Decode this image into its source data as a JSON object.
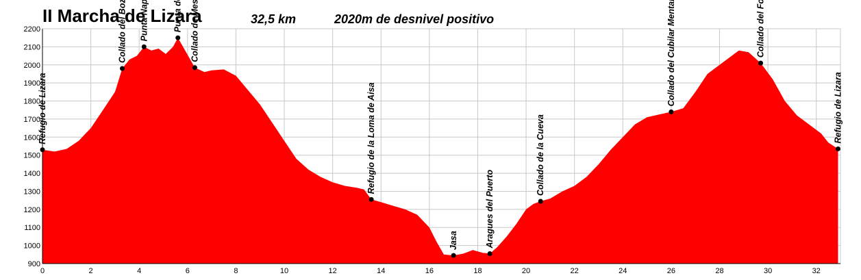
{
  "header": {
    "title": "II Marcha de Lizara",
    "distance": "32,5 km",
    "elevation_gain": "2020m de desnivel positivo"
  },
  "colors": {
    "fill": "#ff0000",
    "grid": "#c8c8c8",
    "axis": "#000000",
    "marker": "#000000"
  },
  "chart_data": {
    "type": "area",
    "title": "II Marcha de Lizara",
    "xlabel": "",
    "ylabel": "",
    "xlim": [
      0,
      33
    ],
    "ylim": [
      900,
      2200
    ],
    "grid": true,
    "x_ticks": [
      0,
      2,
      4,
      6,
      8,
      10,
      12,
      14,
      16,
      18,
      20,
      22,
      24,
      26,
      28,
      30,
      32
    ],
    "y_ticks": [
      900,
      1000,
      1100,
      1200,
      1300,
      1400,
      1500,
      1600,
      1700,
      1800,
      1900,
      2000,
      2100,
      2200
    ],
    "profile": [
      [
        0,
        1530
      ],
      [
        0.5,
        1520
      ],
      [
        1,
        1535
      ],
      [
        1.5,
        1580
      ],
      [
        2,
        1650
      ],
      [
        2.5,
        1750
      ],
      [
        3,
        1850
      ],
      [
        3.3,
        1980
      ],
      [
        3.6,
        2030
      ],
      [
        3.9,
        2050
      ],
      [
        4.2,
        2100
      ],
      [
        4.5,
        2080
      ],
      [
        4.8,
        2090
      ],
      [
        5.1,
        2060
      ],
      [
        5.4,
        2100
      ],
      [
        5.6,
        2150
      ],
      [
        5.9,
        2080
      ],
      [
        6.3,
        1985
      ],
      [
        6.7,
        1960
      ],
      [
        7,
        1970
      ],
      [
        7.5,
        1975
      ],
      [
        8,
        1940
      ],
      [
        8.5,
        1860
      ],
      [
        9,
        1780
      ],
      [
        9.5,
        1680
      ],
      [
        10,
        1580
      ],
      [
        10.5,
        1480
      ],
      [
        11,
        1420
      ],
      [
        11.5,
        1380
      ],
      [
        12,
        1350
      ],
      [
        12.5,
        1330
      ],
      [
        13,
        1320
      ],
      [
        13.3,
        1310
      ],
      [
        13.6,
        1255
      ],
      [
        14,
        1240
      ],
      [
        14.5,
        1220
      ],
      [
        15,
        1200
      ],
      [
        15.5,
        1170
      ],
      [
        16,
        1100
      ],
      [
        16.3,
        1020
      ],
      [
        16.6,
        950
      ],
      [
        17,
        945
      ],
      [
        17.4,
        955
      ],
      [
        17.8,
        975
      ],
      [
        18.2,
        960
      ],
      [
        18.5,
        955
      ],
      [
        18.8,
        990
      ],
      [
        19.2,
        1050
      ],
      [
        19.6,
        1120
      ],
      [
        20,
        1200
      ],
      [
        20.3,
        1230
      ],
      [
        20.6,
        1245
      ],
      [
        21,
        1260
      ],
      [
        21.5,
        1300
      ],
      [
        22,
        1330
      ],
      [
        22.5,
        1380
      ],
      [
        23,
        1450
      ],
      [
        23.5,
        1530
      ],
      [
        24,
        1600
      ],
      [
        24.5,
        1670
      ],
      [
        25,
        1710
      ],
      [
        25.5,
        1725
      ],
      [
        26,
        1740
      ],
      [
        26.5,
        1760
      ],
      [
        27,
        1850
      ],
      [
        27.5,
        1950
      ],
      [
        28,
        2000
      ],
      [
        28.5,
        2050
      ],
      [
        28.8,
        2080
      ],
      [
        29.2,
        2070
      ],
      [
        29.7,
        2010
      ],
      [
        30.2,
        1920
      ],
      [
        30.7,
        1800
      ],
      [
        31.2,
        1720
      ],
      [
        31.7,
        1670
      ],
      [
        32.2,
        1620
      ],
      [
        32.5,
        1570
      ],
      [
        32.9,
        1535
      ]
    ],
    "waypoints": [
      {
        "name": "Refugio de Lizara",
        "x": 0,
        "y": 1530
      },
      {
        "name": "Collado del Bozo",
        "x": 3.3,
        "y": 1980
      },
      {
        "name": "Punta Napazal",
        "x": 4.2,
        "y": 2100
      },
      {
        "name": "Punta de Mesola",
        "x": 5.6,
        "y": 2150
      },
      {
        "name": "Collado de Mesola",
        "x": 6.3,
        "y": 1985
      },
      {
        "name": "Refugio de la Loma de Aisa",
        "x": 13.6,
        "y": 1255
      },
      {
        "name": "Jasa",
        "x": 17,
        "y": 945
      },
      {
        "name": "Aragues del Puerto",
        "x": 18.5,
        "y": 955
      },
      {
        "name": "Collado de la Cueva",
        "x": 20.6,
        "y": 1245
      },
      {
        "name": "Collado del Cubilar Mentar",
        "x": 26,
        "y": 1740
      },
      {
        "name": "Collado del Foraton",
        "x": 29.7,
        "y": 2010
      },
      {
        "name": "Refugio de Lizara",
        "x": 32.9,
        "y": 1535
      }
    ]
  }
}
